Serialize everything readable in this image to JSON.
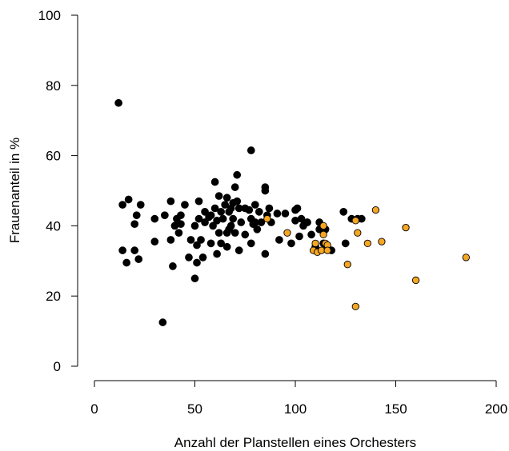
{
  "chart_data": {
    "type": "scatter",
    "title": "",
    "xlabel": "Anzahl der Planstellen eines Orchesters",
    "ylabel": "Frauenanteil in %",
    "xlim": [
      0,
      200
    ],
    "ylim": [
      0,
      100
    ],
    "xticks": [
      0,
      50,
      100,
      150,
      200
    ],
    "yticks": [
      0,
      20,
      40,
      60,
      80,
      100
    ],
    "grid": false,
    "series": [
      {
        "color": "#000000",
        "points": [
          [
            12,
            75
          ],
          [
            14,
            33
          ],
          [
            14,
            46
          ],
          [
            16,
            29.5
          ],
          [
            17,
            47.5
          ],
          [
            20,
            33
          ],
          [
            20,
            40.5
          ],
          [
            21,
            43
          ],
          [
            22,
            30.5
          ],
          [
            23,
            46
          ],
          [
            30,
            42
          ],
          [
            30,
            35.5
          ],
          [
            34,
            12.5
          ],
          [
            35,
            43
          ],
          [
            38,
            47
          ],
          [
            38,
            36
          ],
          [
            39,
            28.5
          ],
          [
            40,
            40
          ],
          [
            41,
            42
          ],
          [
            42,
            38
          ],
          [
            43,
            43
          ],
          [
            43,
            40.5
          ],
          [
            45,
            46
          ],
          [
            47,
            31
          ],
          [
            48,
            36
          ],
          [
            50,
            25
          ],
          [
            50,
            40
          ],
          [
            51,
            34.5
          ],
          [
            51,
            29.5
          ],
          [
            52,
            47
          ],
          [
            52,
            42
          ],
          [
            53,
            36
          ],
          [
            54,
            31
          ],
          [
            55,
            44
          ],
          [
            55,
            41
          ],
          [
            57,
            42.5
          ],
          [
            58,
            35
          ],
          [
            58,
            43
          ],
          [
            59,
            40
          ],
          [
            60,
            52.5
          ],
          [
            60,
            45
          ],
          [
            61,
            41.5
          ],
          [
            61,
            32
          ],
          [
            62,
            38
          ],
          [
            62,
            48.5
          ],
          [
            63,
            35
          ],
          [
            63,
            44
          ],
          [
            64,
            42
          ],
          [
            65,
            46
          ],
          [
            66,
            48
          ],
          [
            66,
            38
          ],
          [
            66,
            34
          ],
          [
            67,
            39
          ],
          [
            67,
            44
          ],
          [
            68,
            40
          ],
          [
            68,
            45
          ],
          [
            69,
            46.5
          ],
          [
            69,
            42
          ],
          [
            70,
            38
          ],
          [
            70,
            51
          ],
          [
            71,
            54.5
          ],
          [
            71,
            47
          ],
          [
            72,
            45
          ],
          [
            72,
            33
          ],
          [
            73,
            41
          ],
          [
            75,
            45
          ],
          [
            75,
            37.5
          ],
          [
            77,
            44.5
          ],
          [
            78,
            42
          ],
          [
            78,
            61.5
          ],
          [
            78,
            35
          ],
          [
            79,
            40.5
          ],
          [
            80,
            46
          ],
          [
            80,
            41
          ],
          [
            81,
            39
          ],
          [
            82,
            44
          ],
          [
            83,
            41
          ],
          [
            85,
            51
          ],
          [
            85,
            50
          ],
          [
            85,
            32
          ],
          [
            86,
            43
          ],
          [
            87,
            45
          ],
          [
            88,
            41
          ],
          [
            91,
            43.5
          ],
          [
            92,
            36
          ],
          [
            95,
            43.5
          ],
          [
            98,
            35
          ],
          [
            100,
            44.5
          ],
          [
            100,
            41.5
          ],
          [
            101,
            45
          ],
          [
            102,
            37
          ],
          [
            103,
            42
          ],
          [
            104,
            40
          ],
          [
            106,
            41
          ],
          [
            108,
            37.5
          ],
          [
            110,
            34
          ],
          [
            112,
            41
          ],
          [
            112,
            39
          ],
          [
            114,
            35
          ],
          [
            115,
            39
          ],
          [
            116,
            33.5
          ],
          [
            118,
            33
          ],
          [
            124,
            44
          ],
          [
            125,
            35
          ],
          [
            128,
            42
          ],
          [
            131,
            42
          ],
          [
            133,
            42
          ]
        ]
      },
      {
        "color": "#f5a623",
        "points": [
          [
            86,
            42
          ],
          [
            96,
            38
          ],
          [
            109,
            33
          ],
          [
            110,
            35
          ],
          [
            111,
            32.5
          ],
          [
            113,
            33
          ],
          [
            114,
            40
          ],
          [
            114,
            37.5
          ],
          [
            115,
            35
          ],
          [
            116,
            34.5
          ],
          [
            116,
            33
          ],
          [
            126,
            29
          ],
          [
            130,
            41.5
          ],
          [
            130,
            17
          ],
          [
            131,
            38
          ],
          [
            136,
            35
          ],
          [
            140,
            44.5
          ],
          [
            143,
            35.5
          ],
          [
            155,
            39.5
          ],
          [
            160,
            24.5
          ],
          [
            185,
            31
          ]
        ]
      }
    ]
  }
}
